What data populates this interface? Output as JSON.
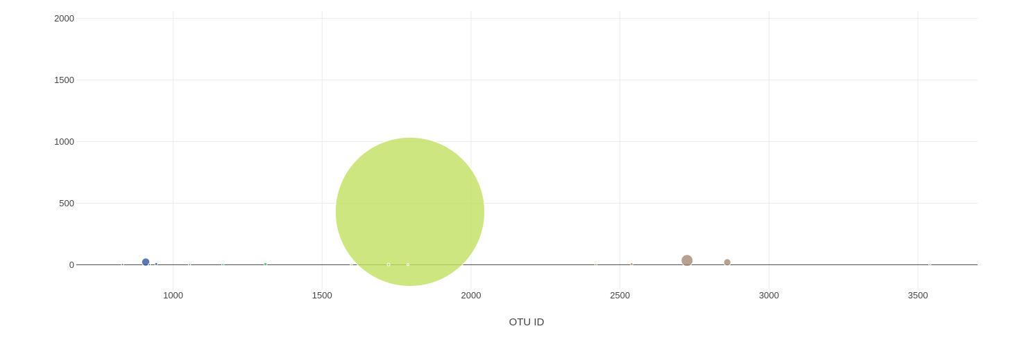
{
  "chart_data": {
    "type": "scatter",
    "subtype": "bubble",
    "title": "",
    "xlabel": "OTU ID",
    "ylabel": "",
    "xlim": [
      675,
      3700
    ],
    "ylim": [
      -200,
      2060
    ],
    "x_ticks": [
      1000,
      1500,
      2000,
      2500,
      3000,
      3500
    ],
    "y_ticks": [
      0,
      500,
      1000,
      1500,
      2000
    ],
    "grid": true,
    "legend": "none",
    "series": [
      {
        "name": "",
        "points": [
          {
            "x": 1795,
            "y": 430,
            "size": 1210,
            "color": "#c0e060"
          },
          {
            "x": 2725,
            "y": 35,
            "size": 95,
            "color": "#a58a74"
          },
          {
            "x": 908,
            "y": 22,
            "size": 65,
            "color": "#34559c"
          },
          {
            "x": 2860,
            "y": 20,
            "size": 58,
            "color": "#a58a74"
          },
          {
            "x": 1310,
            "y": 5,
            "size": 25,
            "color": "#3cc86a"
          },
          {
            "x": 1723,
            "y": 2,
            "size": 22,
            "color": "#a6db86"
          },
          {
            "x": 943,
            "y": 6,
            "size": 22,
            "color": "#34559c"
          },
          {
            "x": 2539,
            "y": 6,
            "size": 20,
            "color": "#a0704e"
          },
          {
            "x": 830,
            "y": 2,
            "size": 14,
            "color": "#34559c"
          },
          {
            "x": 1167,
            "y": 1,
            "size": 8,
            "color": "#2ab39a"
          },
          {
            "x": 2419,
            "y": 1,
            "size": 6,
            "color": "#c68642"
          },
          {
            "x": 1598,
            "y": 1,
            "size": 6,
            "color": "#a6db86"
          },
          {
            "x": 1788,
            "y": 1,
            "size": 6,
            "color": "#c0e060"
          },
          {
            "x": 1055,
            "y": 1,
            "size": 5,
            "color": "#4d8fc0"
          },
          {
            "x": 3540,
            "y": 1,
            "size": 4,
            "color": "#9bb4c4"
          },
          {
            "x": 920,
            "y": 1,
            "size": 4,
            "color": "#34559c"
          }
        ]
      }
    ]
  }
}
